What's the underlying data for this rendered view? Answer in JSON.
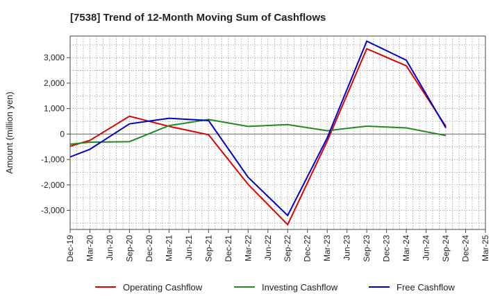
{
  "chart_data": {
    "type": "line",
    "title": "[7538]  Trend of 12-Month Moving Sum of Cashflows",
    "ylabel": "Amount (million yen)",
    "xlabel": "",
    "ylim": [
      -3750,
      3850
    ],
    "yticks": [
      -3000,
      -2000,
      -1000,
      0,
      1000,
      2000,
      3000
    ],
    "ytick_labels": [
      "-3,000",
      "-2,000",
      "-1,000",
      "0",
      "1,000",
      "2,000",
      "3,000"
    ],
    "categories": [
      "Dec-19",
      "Mar-20",
      "Jun-20",
      "Sep-20",
      "Dec-20",
      "Mar-21",
      "Jun-21",
      "Sep-21",
      "Dec-21",
      "Mar-22",
      "Jun-22",
      "Sep-22",
      "Dec-22",
      "Mar-23",
      "Jun-23",
      "Sep-23",
      "Dec-23",
      "Mar-24",
      "Jun-24",
      "Sep-24",
      "Dec-24",
      "Mar-25"
    ],
    "grid": true,
    "legend_position": "bottom",
    "series": [
      {
        "name": "Operating Cashflow",
        "color": "#dd0000",
        "values": [
          -480,
          -250,
          null,
          700,
          null,
          300,
          null,
          -30,
          null,
          -1980,
          null,
          -3560,
          null,
          -280,
          null,
          3350,
          null,
          2680,
          null,
          300,
          null,
          null
        ]
      },
      {
        "name": "Investing Cashflow",
        "color": "#228822",
        "values": [
          -400,
          -320,
          null,
          -300,
          null,
          330,
          null,
          570,
          null,
          300,
          null,
          370,
          null,
          130,
          null,
          310,
          null,
          240,
          null,
          -60,
          null,
          null
        ]
      },
      {
        "name": "Free Cashflow",
        "color": "#0000cc",
        "values": [
          -900,
          -600,
          null,
          400,
          null,
          620,
          null,
          530,
          null,
          -1700,
          null,
          -3200,
          null,
          -150,
          null,
          3650,
          null,
          2900,
          null,
          240,
          null,
          null
        ]
      }
    ]
  }
}
